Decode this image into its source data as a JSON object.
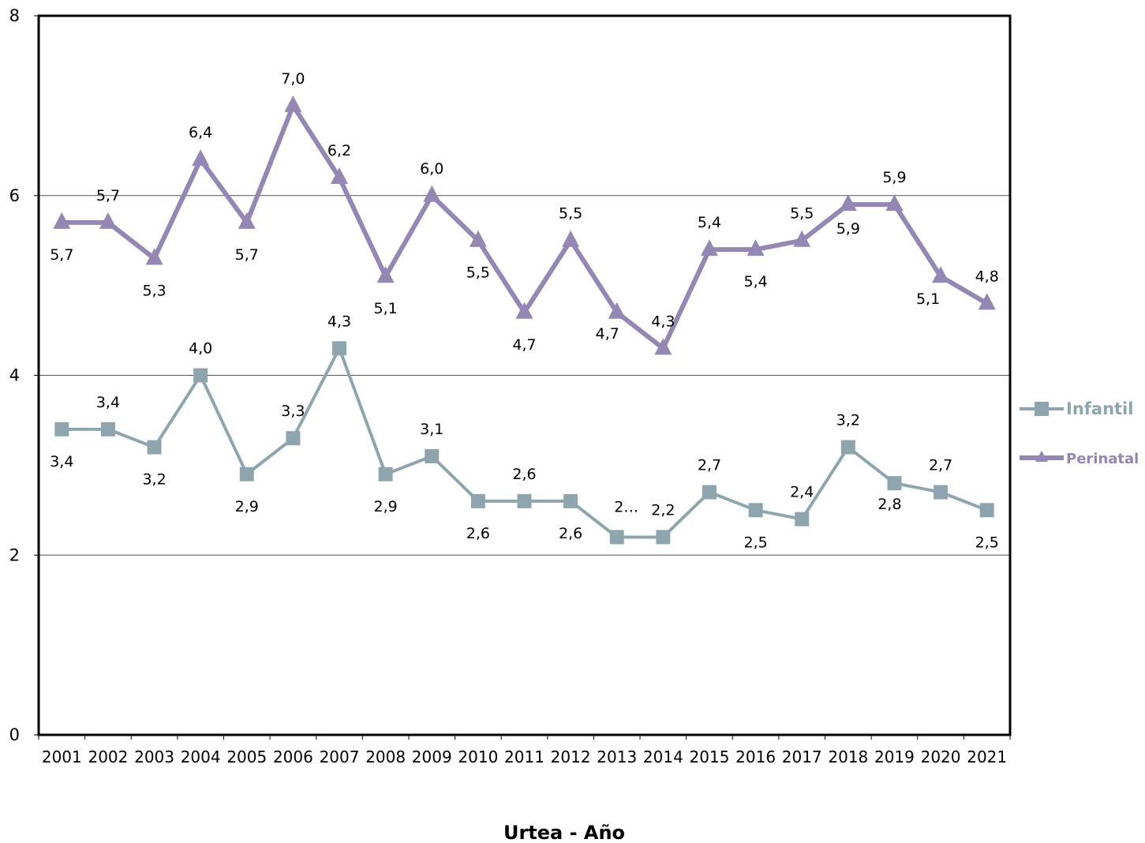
{
  "chart_data": {
    "type": "line",
    "title": "",
    "xlabel": "Urtea - Año",
    "ylabel": "",
    "ylim": [
      0,
      8
    ],
    "yticks": [
      "0",
      "2",
      "4",
      "6",
      "8"
    ],
    "grid": "horizontal at 2, 4, 6",
    "legend_position": "right",
    "categories": [
      "2001",
      "2002",
      "2003",
      "2004",
      "2005",
      "2006",
      "2007",
      "2008",
      "2009",
      "2010",
      "2011",
      "2012",
      "2013",
      "2014",
      "2015",
      "2016",
      "2017",
      "2018",
      "2019",
      "2020",
      "2021"
    ],
    "series": [
      {
        "name": "Infantil",
        "color": "#8FA5AE",
        "marker": "square",
        "values": [
          3.4,
          3.4,
          3.2,
          4.0,
          2.9,
          3.3,
          4.3,
          2.9,
          3.1,
          2.6,
          2.6,
          2.6,
          2.2,
          2.2,
          2.7,
          2.5,
          2.4,
          3.2,
          2.8,
          2.7,
          2.5
        ],
        "labels": [
          "3,4",
          "3,4",
          "3,2",
          "4,0",
          "2,9",
          "3,3",
          "4,3",
          "2,9",
          "3,1",
          "2,6",
          "2,6",
          "2,6",
          "2…",
          "2,2",
          "2,7",
          "2,5",
          "2,4",
          "3,2",
          "2,8",
          "2,7",
          "2,5"
        ]
      },
      {
        "name": "Perinatal",
        "color": "#9487B3",
        "marker": "triangle",
        "values": [
          5.7,
          5.7,
          5.3,
          6.4,
          5.7,
          7.0,
          6.2,
          5.1,
          6.0,
          5.5,
          4.7,
          5.5,
          4.7,
          4.3,
          5.4,
          5.4,
          5.5,
          5.9,
          5.9,
          5.1,
          4.8
        ],
        "labels": [
          "5,7",
          "5,7",
          "5,3",
          "6,4",
          "5,7",
          "7,0",
          "6,2",
          "5,1",
          "6,0",
          "5,5",
          "4,7",
          "5,5",
          "4,7",
          "4,3",
          "5,4",
          "5,4",
          "5,5",
          "5,9",
          "5,9",
          "5,1",
          "4,8"
        ]
      }
    ]
  }
}
